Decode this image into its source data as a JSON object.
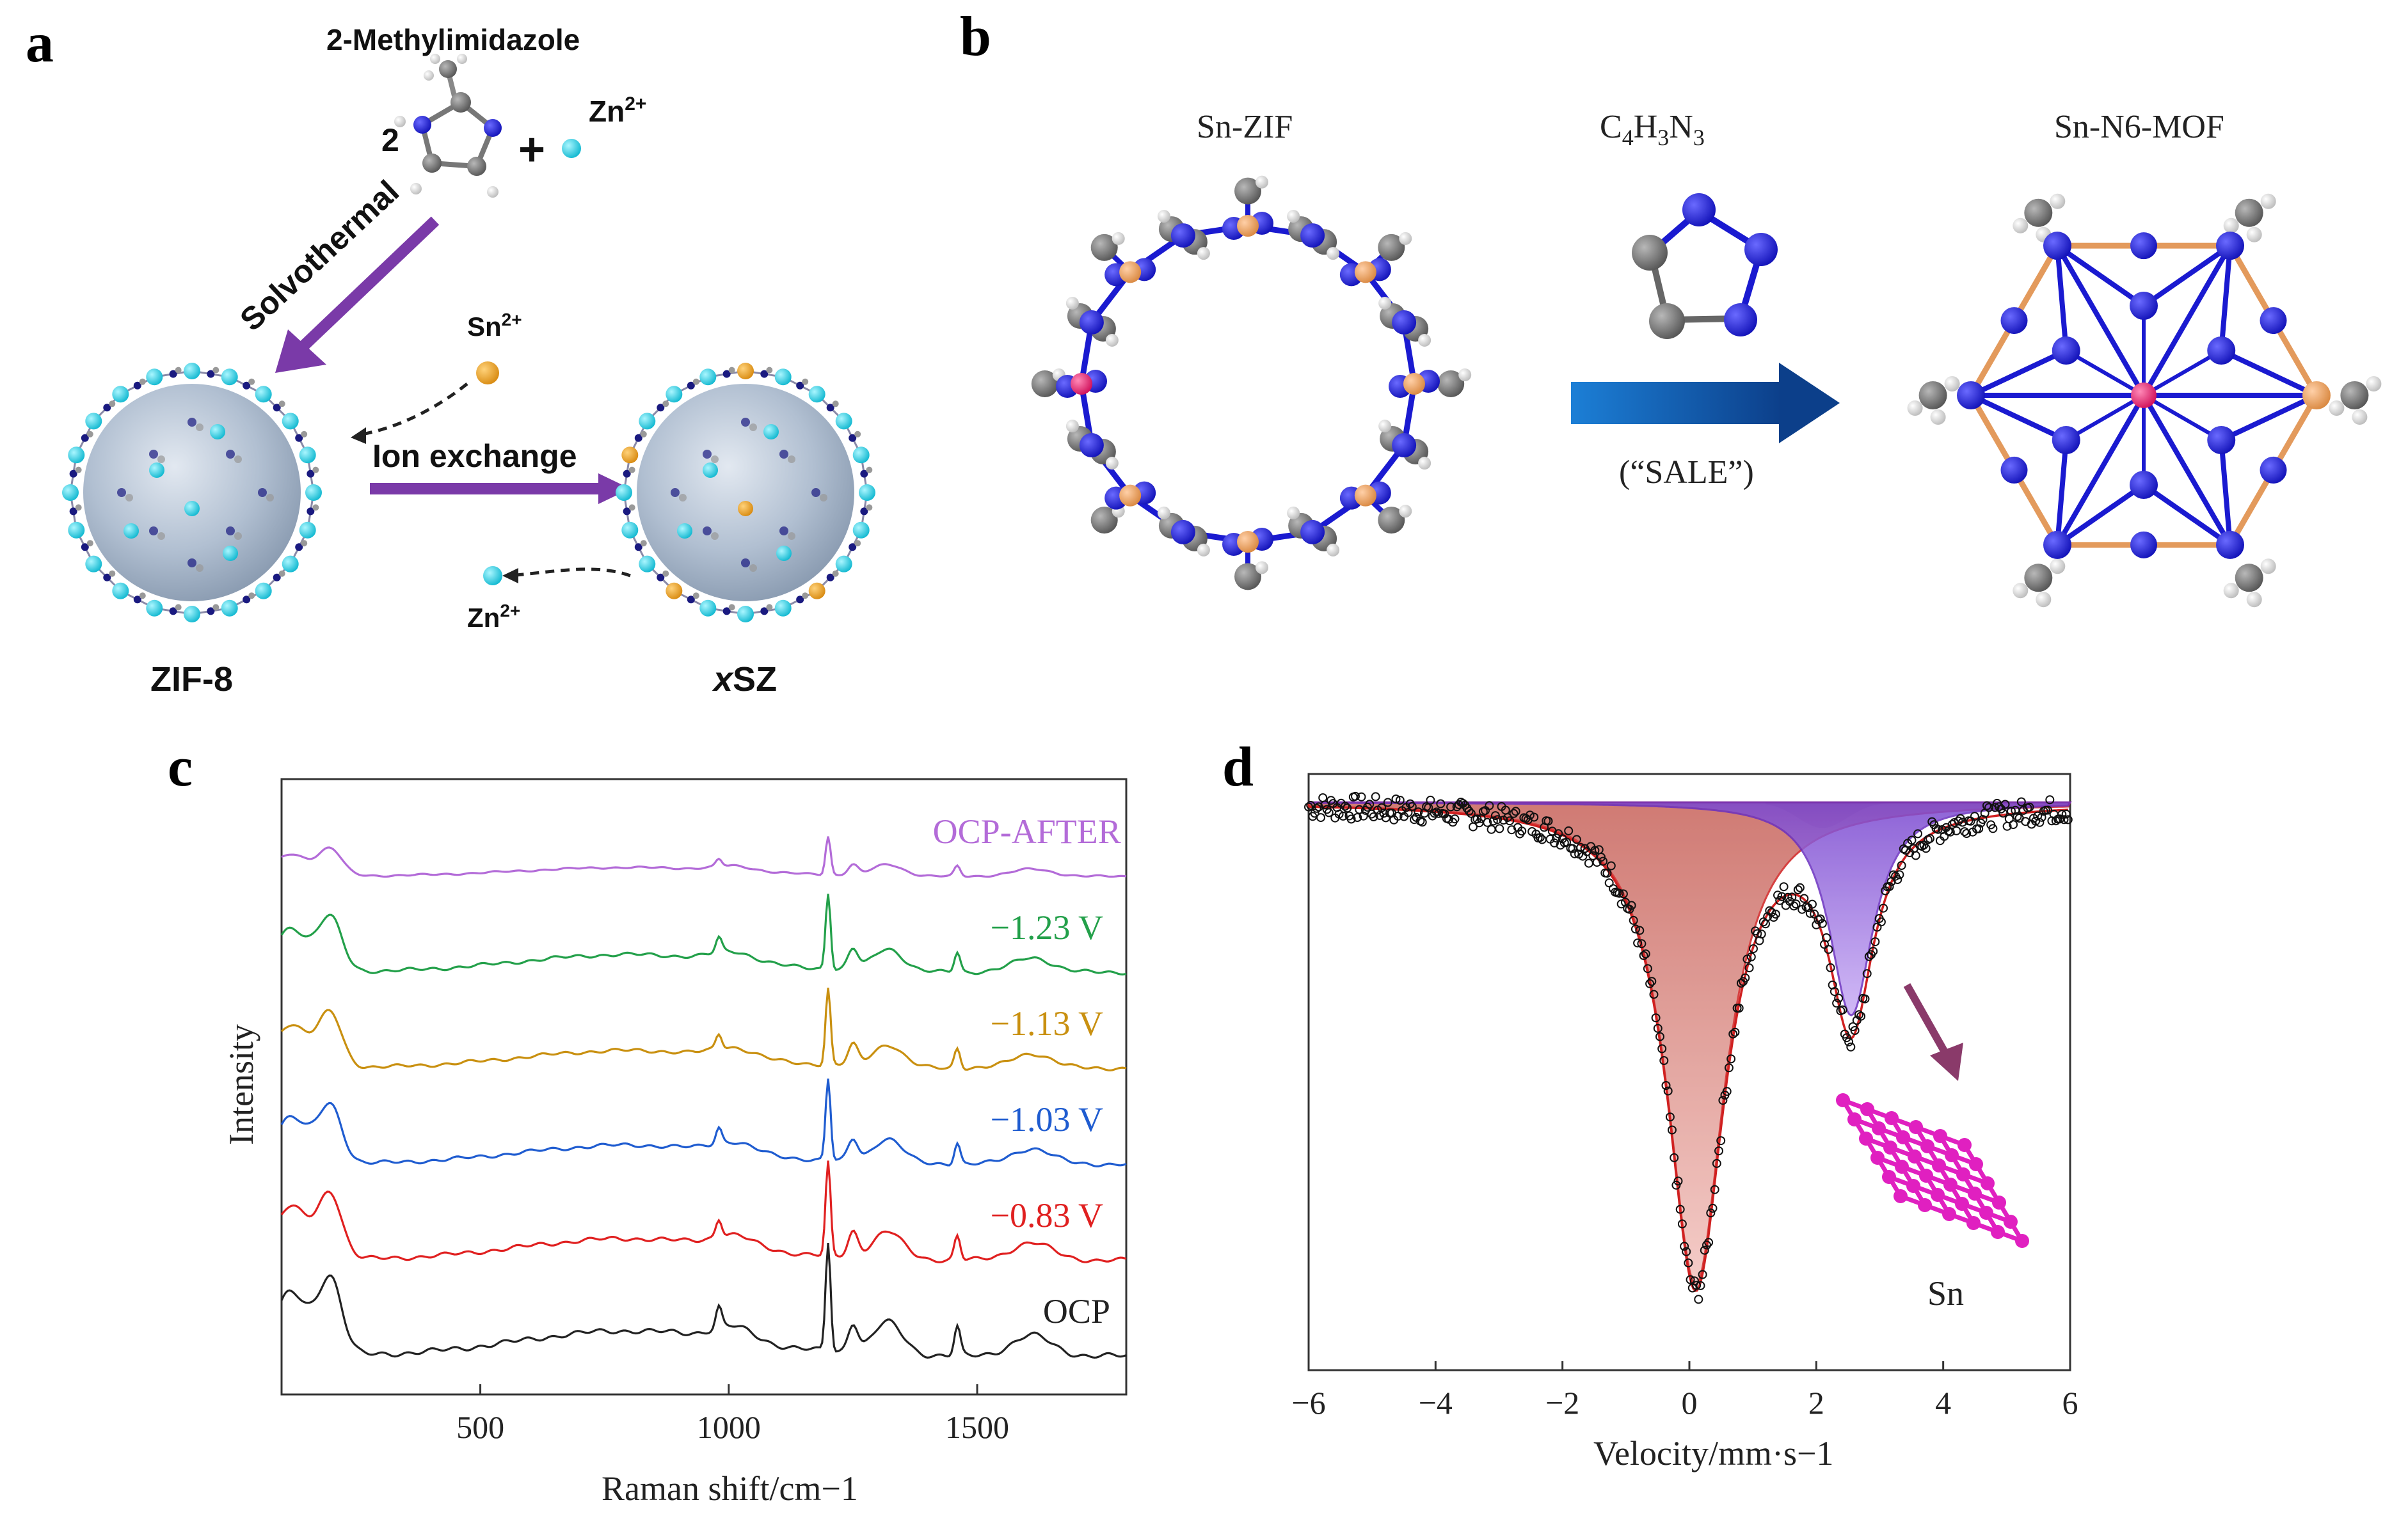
{
  "panels": {
    "a": {
      "label": "a",
      "ligand": "2-Methylimidazole",
      "coef": "2",
      "plus": "+",
      "zn_top": "Zn",
      "charge": "2+",
      "solvothermal": "Solvothermal",
      "sn_ion": "Sn",
      "ion_exchange": "Ion exchange",
      "zn_out": "Zn",
      "zif8": "ZIF-8",
      "xsz_x": "x",
      "xsz_rest": "SZ"
    },
    "b": {
      "label": "b",
      "snzif": "Sn-ZIF",
      "reagent_main": "C",
      "reagent_sub1": "4",
      "reagent_h": "H",
      "reagent_sub2": "3",
      "reagent_n": "N",
      "reagent_sub3": "3",
      "sale": "(“SALE”)",
      "product": "Sn-N6-MOF"
    },
    "c": {
      "label": "c"
    },
    "d": {
      "label": "d",
      "inset_label": "Sn"
    }
  },
  "colors": {
    "zn": "#22cfe0",
    "sn": "#f0a020",
    "arrow": "#7a3aa8",
    "n_atom": "#1a1ad0",
    "c_atom": "#6e6e6e",
    "sn_atom": "#e0307a",
    "cu_bond": "#e39a5c",
    "sn_lattice": "#e020c0"
  },
  "chart_data": [
    {
      "type": "line",
      "panel": "c",
      "xlabel": "Raman shift/cm−1",
      "ylabel": "Intensity",
      "xlim": [
        100,
        1800
      ],
      "xticks": [
        500,
        1000,
        1500
      ],
      "peaks_cm": [
        200,
        980,
        1010,
        1200,
        1250,
        1320,
        1460,
        1610
      ],
      "series": [
        {
          "name": "OCP-AFTER",
          "color": "#b36bd8",
          "offset": 5,
          "scale": 0.35,
          "label_x": 1600
        },
        {
          "name": "−1.23 V",
          "color": "#23a04a",
          "offset": 4,
          "scale": 0.7,
          "label_x": 1640
        },
        {
          "name": "−1.13 V",
          "color": "#c99010",
          "offset": 3,
          "scale": 0.7,
          "label_x": 1640
        },
        {
          "name": "−1.03 V",
          "color": "#1f5cd0",
          "offset": 2,
          "scale": 0.75,
          "label_x": 1640
        },
        {
          "name": "−0.83 V",
          "color": "#e02020",
          "offset": 1,
          "scale": 0.85,
          "label_x": 1640
        },
        {
          "name": "OCP",
          "color": "#222222",
          "offset": 0,
          "scale": 1.0,
          "label_x": 1700
        }
      ]
    },
    {
      "type": "scatter",
      "panel": "d",
      "xlabel": "Velocity/mm·s−1",
      "ylabel": "",
      "xlim": [
        -6,
        6
      ],
      "xticks": [
        -6,
        -4,
        -2,
        0,
        2,
        4,
        6
      ],
      "baseline": 1.0,
      "components": [
        {
          "name": "red doublet",
          "center": 0.1,
          "width": 0.55,
          "depth": 0.68,
          "color": "#e8908a",
          "edge": "#d02020"
        },
        {
          "name": "purple singlet",
          "center": 2.55,
          "width": 0.42,
          "depth": 0.3,
          "color": "#a880e8",
          "edge": "#6a30c0"
        }
      ],
      "ylim": [
        0.2,
        1.04
      ]
    }
  ]
}
